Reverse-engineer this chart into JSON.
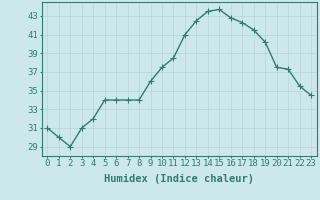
{
  "x": [
    0,
    1,
    2,
    3,
    4,
    5,
    6,
    7,
    8,
    9,
    10,
    11,
    12,
    13,
    14,
    15,
    16,
    17,
    18,
    19,
    20,
    21,
    22,
    23
  ],
  "y": [
    31,
    30,
    29,
    31,
    32,
    34,
    34,
    34,
    34,
    36,
    37.5,
    38.5,
    41,
    42.5,
    43.5,
    43.7,
    42.8,
    42.3,
    41.5,
    40.2,
    37.5,
    37.3,
    35.5,
    34.5
  ],
  "line_color": "#2e7d6e",
  "marker": "+",
  "bg_color": "#cde8ec",
  "grid_color": "#b8d4d8",
  "xlabel": "Humidex (Indice chaleur)",
  "xlabel_fontsize": 7.5,
  "yticks": [
    29,
    31,
    33,
    35,
    37,
    39,
    41,
    43
  ],
  "xlim": [
    -0.5,
    23.5
  ],
  "ylim": [
    28.0,
    44.5
  ],
  "xticks": [
    0,
    1,
    2,
    3,
    4,
    5,
    6,
    7,
    8,
    9,
    10,
    11,
    12,
    13,
    14,
    15,
    16,
    17,
    18,
    19,
    20,
    21,
    22,
    23
  ],
  "tick_color": "#2e7d6e",
  "tick_fontsize": 6.5,
  "line_width": 1.0,
  "marker_size": 4,
  "font_family": "monospace"
}
